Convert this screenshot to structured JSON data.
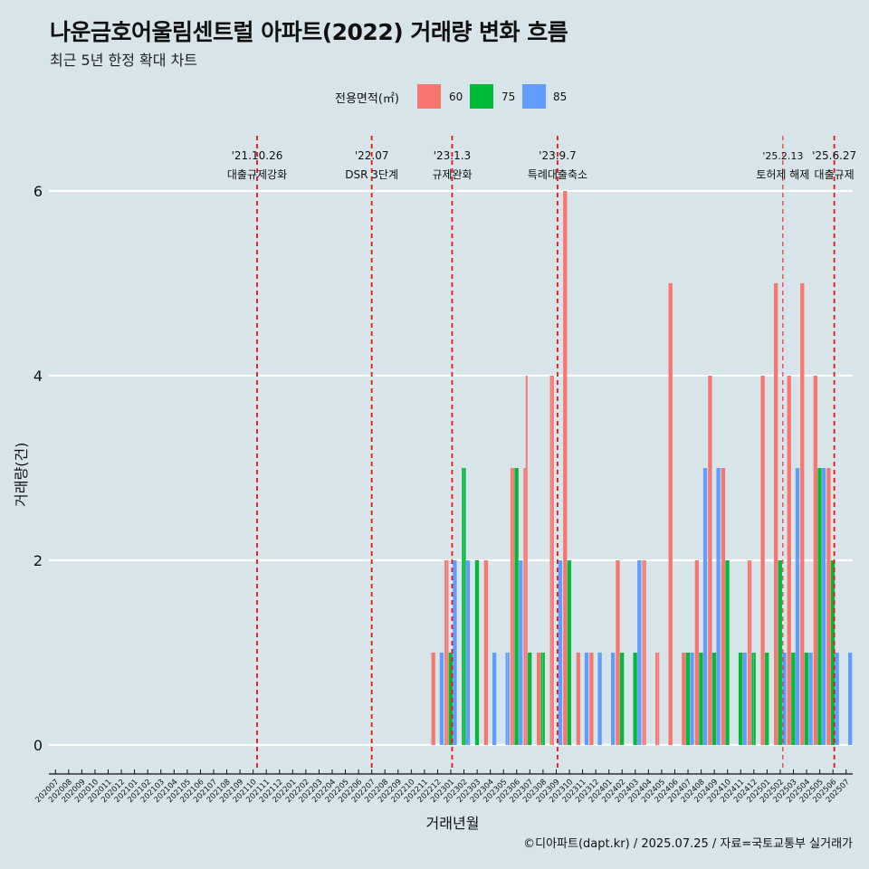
{
  "title": "나운금호어울림센트럴 아파트(2022) 거래량 변화 흐름",
  "subtitle": "최근 5년 한정 확대 차트",
  "caption": "©디아파트(dapt.kr) / 2025.07.25 / 자료=국토교통부 실거래가",
  "legend": {
    "title": "전용면적(㎡)",
    "items": [
      {
        "label": "60",
        "color": "#f8766d"
      },
      {
        "label": "75",
        "color": "#00ba38"
      },
      {
        "label": "85",
        "color": "#619cff"
      }
    ]
  },
  "chart_data": {
    "type": "bar",
    "xlabel": "거래년월",
    "ylabel": "거래량(건)",
    "ylim": [
      0,
      6.3
    ],
    "yticks": [
      0,
      2,
      4,
      6
    ],
    "grid": true,
    "categories": [
      "202007",
      "202008",
      "202009",
      "202010",
      "202011",
      "202012",
      "202101",
      "202102",
      "202103",
      "202104",
      "202105",
      "202106",
      "202107",
      "202108",
      "202109",
      "202110",
      "202111",
      "202112",
      "202201",
      "202202",
      "202203",
      "202204",
      "202205",
      "202206",
      "202207",
      "202208",
      "202209",
      "202210",
      "202211",
      "202212",
      "202301",
      "202302",
      "202303",
      "202304",
      "202305",
      "202306",
      "202307",
      "202308",
      "202309",
      "202310",
      "202311",
      "202312",
      "202401",
      "202402",
      "202403",
      "202404",
      "202405",
      "202406",
      "202407",
      "202408",
      "202409",
      "202410",
      "202411",
      "202412",
      "202501",
      "202502",
      "202503",
      "202504",
      "202505",
      "202506",
      "202507"
    ],
    "series": [
      {
        "name": "60",
        "color": "#f8766d",
        "values": [
          0,
          0,
          0,
          0,
          0,
          0,
          0,
          0,
          0,
          0,
          0,
          0,
          0,
          0,
          0,
          0,
          0,
          0,
          0,
          0,
          0,
          0,
          0,
          0,
          0,
          0,
          0,
          0,
          0,
          1,
          2,
          0,
          0,
          2,
          0,
          3,
          4,
          1,
          4,
          6,
          1,
          1,
          0,
          2,
          0,
          2,
          1,
          5,
          1,
          2,
          4,
          3,
          0,
          2,
          4,
          5,
          4,
          5,
          4,
          3,
          0
        ],
        "day_values": [
          [],
          [],
          [],
          [],
          [],
          [],
          [],
          [],
          [],
          [],
          [],
          [],
          [],
          [],
          [],
          [],
          [],
          [],
          [],
          [],
          [],
          [],
          [],
          [],
          [],
          [],
          [],
          [],
          [],
          [
            1
          ],
          [
            2,
            2
          ],
          [],
          [],
          [
            2
          ],
          [],
          [
            3,
            3
          ],
          [
            3,
            4
          ],
          [
            1
          ],
          [
            4,
            4
          ],
          [
            6
          ],
          [
            1
          ],
          [
            1
          ],
          [],
          [
            2
          ],
          [],
          [
            2,
            2
          ],
          [
            1,
            1
          ],
          [
            5
          ],
          [
            1
          ],
          [
            2
          ],
          [
            4
          ],
          [
            3
          ],
          [],
          [
            2,
            2
          ],
          [
            4
          ],
          [
            5
          ],
          [
            4
          ],
          [
            5
          ],
          [
            4
          ],
          [
            3
          ],
          []
        ]
      },
      {
        "name": "75",
        "color": "#00ba38",
        "values": [
          0,
          0,
          0,
          0,
          0,
          0,
          0,
          0,
          0,
          0,
          0,
          0,
          0,
          0,
          0,
          0,
          0,
          0,
          0,
          0,
          0,
          0,
          0,
          0,
          0,
          0,
          0,
          0,
          0,
          0,
          1,
          3,
          2,
          0,
          0,
          3,
          1,
          1,
          0,
          2,
          0,
          0,
          0,
          1,
          1,
          0,
          0,
          0,
          1,
          1,
          1,
          2,
          1,
          1,
          1,
          2,
          1,
          1,
          3,
          2,
          0
        ],
        "day_values": [
          [],
          [],
          [],
          [],
          [],
          [],
          [],
          [],
          [],
          [],
          [],
          [],
          [],
          [],
          [],
          [],
          [],
          [],
          [],
          [],
          [],
          [],
          [],
          [],
          [],
          [],
          [],
          [],
          [],
          [],
          [
            1
          ],
          [
            3,
            3
          ],
          [
            2
          ],
          [],
          [],
          [
            3
          ],
          [
            1
          ],
          [
            1,
            1
          ],
          [],
          [
            2
          ],
          [],
          [],
          [],
          [
            1
          ],
          [
            1
          ],
          [],
          [],
          [],
          [
            1
          ],
          [
            1
          ],
          [
            1
          ],
          [
            2
          ],
          [
            1
          ],
          [
            1,
            1
          ],
          [
            1
          ],
          [
            2
          ],
          [
            1
          ],
          [
            1
          ],
          [
            3
          ],
          [
            2
          ],
          []
        ]
      },
      {
        "name": "85",
        "color": "#619cff",
        "values": [
          0,
          0,
          0,
          0,
          0,
          0,
          0,
          0,
          0,
          0,
          0,
          0,
          0,
          0,
          0,
          0,
          0,
          0,
          0,
          0,
          0,
          0,
          0,
          0,
          0,
          0,
          0,
          0,
          0,
          1,
          2,
          2,
          0,
          1,
          1,
          2,
          0,
          0,
          2,
          0,
          1,
          1,
          1,
          0,
          2,
          0,
          0,
          0,
          1,
          3,
          3,
          0,
          1,
          0,
          0,
          1,
          3,
          1,
          3,
          1,
          1
        ],
        "day_values": [
          [],
          [],
          [],
          [],
          [],
          [],
          [],
          [],
          [],
          [],
          [],
          [],
          [],
          [],
          [],
          [],
          [],
          [],
          [],
          [],
          [],
          [],
          [],
          [],
          [],
          [],
          [],
          [],
          [],
          [
            1
          ],
          [
            2
          ],
          [
            2
          ],
          [],
          [
            1
          ],
          [
            1,
            1
          ],
          [
            2
          ],
          [],
          [],
          [
            2
          ],
          [],
          [
            1
          ],
          [
            1
          ],
          [
            1
          ],
          [],
          [
            2
          ],
          [],
          [],
          [],
          [
            1
          ],
          [
            3
          ],
          [
            3
          ],
          [],
          [
            1
          ],
          [],
          [],
          [
            1
          ],
          [
            3
          ],
          [
            1
          ],
          [
            3
          ],
          [
            1
          ],
          [
            1
          ]
        ]
      }
    ],
    "annotations": [
      {
        "date_label": "'21.10.26",
        "text": "대출규제강화",
        "month_index": 15.8,
        "style": "dashed"
      },
      {
        "date_label": "'22.07",
        "text": "DSR 3단계",
        "month_index": 24.5,
        "style": "dashed"
      },
      {
        "date_label": "'23.1.3",
        "text": "규제완화",
        "month_index": 30.6,
        "style": "dashed"
      },
      {
        "date_label": "'23.9.7",
        "text": "특례대출축소",
        "month_index": 38.6,
        "style": "dashed"
      },
      {
        "date_label": "'25.2.13",
        "text": "토허제 해제",
        "month_index": 55.7,
        "style": "thin-dashed"
      },
      {
        "date_label": "'25.6.27",
        "text": "대출규제",
        "month_index": 59.6,
        "style": "dashed"
      }
    ]
  }
}
